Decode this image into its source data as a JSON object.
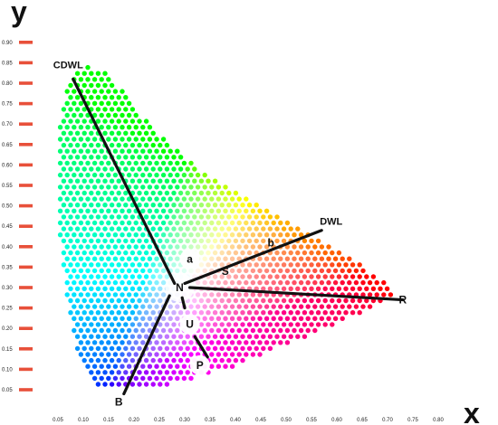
{
  "axes": {
    "x_title": "x",
    "y_title": "y",
    "x_ticks": [
      "0.05",
      "0.10",
      "0.15",
      "0.20",
      "0.25",
      "0.30",
      "0.35",
      "0.40",
      "0.45",
      "0.50",
      "0.55",
      "0.60",
      "0.65",
      "0.70",
      "0.75",
      "0.80"
    ],
    "x_tick_values": [
      0.05,
      0.1,
      0.15,
      0.2,
      0.25,
      0.3,
      0.35,
      0.4,
      0.45,
      0.5,
      0.55,
      0.6,
      0.65,
      0.7,
      0.75,
      0.8
    ],
    "y_ticks": [
      "0.90",
      "0.85",
      "0.80",
      "0.75",
      "0.70",
      "0.65",
      "0.60",
      "0.55",
      "0.50",
      "0.45",
      "0.40",
      "0.35",
      "0.30",
      "0.25",
      "0.20",
      "0.15",
      "0.10",
      "0.05"
    ],
    "y_tick_values": [
      0.9,
      0.85,
      0.8,
      0.75,
      0.7,
      0.65,
      0.6,
      0.55,
      0.5,
      0.45,
      0.4,
      0.35,
      0.3,
      0.25,
      0.2,
      0.15,
      0.1,
      0.05
    ],
    "tick_mark_color": "#e8503a"
  },
  "points": {
    "N": {
      "label": "N",
      "x": 0.29,
      "y": 0.3
    },
    "S": {
      "label": "S",
      "x": 0.38,
      "y": 0.34
    },
    "U": {
      "label": "U",
      "x": 0.31,
      "y": 0.21
    },
    "P": {
      "label": "P",
      "x": 0.33,
      "y": 0.11
    },
    "R": {
      "label": "R",
      "x": 0.73,
      "y": 0.27
    },
    "B": {
      "label": "B",
      "x": 0.17,
      "y": 0.02
    },
    "a": {
      "label": "a",
      "x": 0.31,
      "y": 0.37
    },
    "b": {
      "label": "b",
      "x": 0.47,
      "y": 0.41
    }
  },
  "lines": {
    "CDWL": {
      "label": "CDWL",
      "from": [
        0.08,
        0.81
      ],
      "to": [
        0.28,
        0.31
      ]
    },
    "DWL": {
      "label": "DWL",
      "from": [
        0.3,
        0.31
      ],
      "to": [
        0.57,
        0.44
      ]
    },
    "NR": {
      "from": [
        0.31,
        0.3
      ],
      "to": [
        0.73,
        0.27
      ]
    },
    "NB": {
      "from": [
        0.27,
        0.28
      ],
      "to": [
        0.18,
        0.04
      ]
    },
    "NU": {
      "from": [
        0.295,
        0.275
      ],
      "to": [
        0.3,
        0.25
      ]
    },
    "UP": {
      "from": [
        0.32,
        0.18
      ],
      "to": [
        0.345,
        0.13
      ]
    }
  },
  "gamut_boundary": [
    [
      0.08,
      0.82
    ],
    [
      0.09,
      0.835
    ],
    [
      0.11,
      0.84
    ],
    [
      0.13,
      0.835
    ],
    [
      0.16,
      0.81
    ],
    [
      0.19,
      0.76
    ],
    [
      0.23,
      0.7
    ],
    [
      0.27,
      0.65
    ],
    [
      0.32,
      0.6
    ],
    [
      0.38,
      0.55
    ],
    [
      0.45,
      0.5
    ],
    [
      0.53,
      0.44
    ],
    [
      0.62,
      0.38
    ],
    [
      0.7,
      0.31
    ],
    [
      0.72,
      0.285
    ],
    [
      0.67,
      0.25
    ],
    [
      0.58,
      0.2
    ],
    [
      0.48,
      0.15
    ],
    [
      0.38,
      0.1
    ],
    [
      0.3,
      0.07
    ],
    [
      0.22,
      0.05
    ],
    [
      0.17,
      0.05
    ],
    [
      0.13,
      0.06
    ],
    [
      0.11,
      0.09
    ],
    [
      0.09,
      0.14
    ],
    [
      0.08,
      0.2
    ],
    [
      0.065,
      0.3
    ],
    [
      0.055,
      0.4
    ],
    [
      0.05,
      0.5
    ],
    [
      0.05,
      0.6
    ],
    [
      0.055,
      0.7
    ],
    [
      0.06,
      0.76
    ]
  ]
}
